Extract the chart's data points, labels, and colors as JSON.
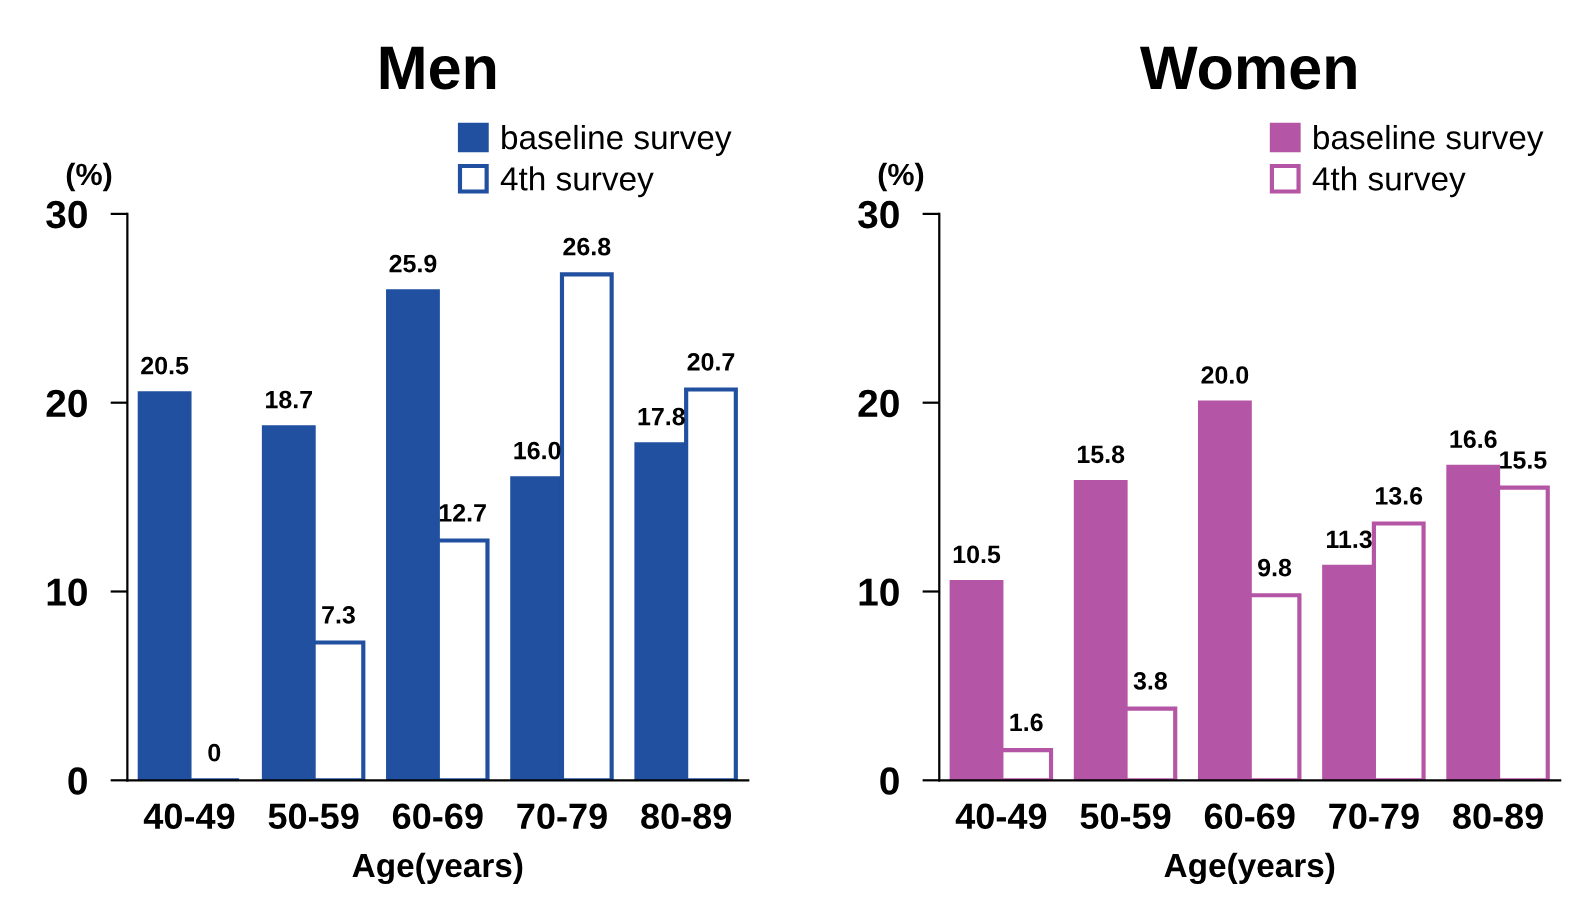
{
  "chart_data": [
    {
      "type": "bar",
      "title": "Men",
      "xlabel": "Age(years)",
      "ylabel": "(%)",
      "categories": [
        "40-49",
        "50-59",
        "60-69",
        "70-79",
        "80-89"
      ],
      "series": [
        {
          "name": "baseline survey",
          "color": "#2150a0",
          "values": [
            20.5,
            18.7,
            25.9,
            16.0,
            17.8
          ],
          "value_labels": [
            "20.5",
            "18.7",
            "25.9",
            "16.0",
            "17.8"
          ]
        },
        {
          "name": "4th survey",
          "color": "#2150a0",
          "values": [
            0,
            7.3,
            12.7,
            26.8,
            20.7
          ],
          "value_labels": [
            "0",
            "7.3",
            "12.7",
            "26.8",
            "20.7"
          ]
        }
      ],
      "ylim": [
        0,
        30
      ],
      "yticks": [
        0,
        10,
        20,
        30
      ],
      "grid": false,
      "legend": "top right"
    },
    {
      "type": "bar",
      "title": "Women",
      "xlabel": "Age(years)",
      "ylabel": "(%)",
      "categories": [
        "40-49",
        "50-59",
        "60-69",
        "70-79",
        "80-89"
      ],
      "series": [
        {
          "name": "baseline survey",
          "color": "#b555a5",
          "values": [
            10.5,
            15.8,
            20.0,
            11.3,
            16.6
          ],
          "value_labels": [
            "10.5",
            "15.8",
            "20.0",
            "11.3",
            "16.6"
          ]
        },
        {
          "name": "4th survey",
          "color": "#b555a5",
          "values": [
            1.6,
            3.8,
            9.8,
            13.6,
            15.5
          ],
          "value_labels": [
            "1.6",
            "3.8",
            "9.8",
            "13.6",
            "15.5"
          ]
        }
      ],
      "ylim": [
        0,
        30
      ],
      "yticks": [
        0,
        10,
        20,
        30
      ],
      "grid": false,
      "legend": "top right"
    }
  ]
}
